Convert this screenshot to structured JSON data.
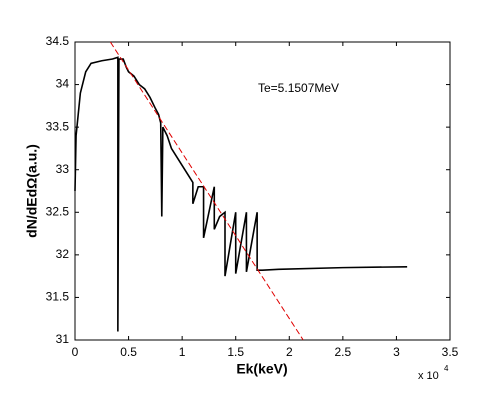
{
  "chart_data": {
    "type": "line",
    "xlabel": "Ek(keV)",
    "ylabel": "dN/dEdΩ(a.u.)",
    "annotation": "Te=5.1507MeV",
    "x_multiplier": "x 10",
    "x_multiplier_exponent": "4",
    "xlim": [
      0,
      3.5
    ],
    "xticks": [
      0,
      0.5,
      1,
      1.5,
      2,
      2.5,
      3,
      3.5
    ],
    "ylim": [
      31,
      34.5
    ],
    "yticks": [
      31,
      31.5,
      32,
      32.5,
      33,
      33.5,
      34,
      34.5
    ],
    "series": [
      {
        "color": "#000000",
        "dash": false,
        "x": [
          0,
          0.01,
          0.05,
          0.1,
          0.15,
          0.25,
          0.35,
          0.4,
          0.4,
          0.41,
          0.45,
          0.48,
          0.5,
          0.55,
          0.6,
          0.65,
          0.7,
          0.75,
          0.78,
          0.8,
          0.81,
          0.82,
          0.86,
          0.9,
          0.95,
          1.0,
          1.05,
          1.1,
          1.1,
          1.15,
          1.2,
          1.2,
          1.3,
          1.3,
          1.35,
          1.4,
          1.4,
          1.5,
          1.5,
          1.6,
          1.6,
          1.7,
          1.7,
          1.75,
          1.9,
          2.5,
          3.1
        ],
        "values": [
          32.75,
          33.4,
          33.9,
          34.15,
          34.25,
          34.28,
          34.3,
          34.32,
          31.1,
          34.3,
          34.3,
          34.2,
          34.15,
          34.1,
          34.0,
          33.95,
          33.85,
          33.72,
          33.65,
          33.55,
          32.45,
          33.5,
          33.4,
          33.25,
          33.15,
          33.05,
          32.95,
          32.85,
          32.6,
          32.8,
          32.8,
          32.2,
          32.8,
          32.3,
          32.45,
          32.5,
          31.75,
          32.5,
          31.78,
          32.5,
          31.8,
          32.5,
          31.82,
          31.82,
          31.83,
          31.85,
          31.86
        ]
      },
      {
        "color": "#e00000",
        "dash": true,
        "x": [
          0.33,
          2.13
        ],
        "values": [
          34.5,
          31
        ]
      }
    ]
  }
}
